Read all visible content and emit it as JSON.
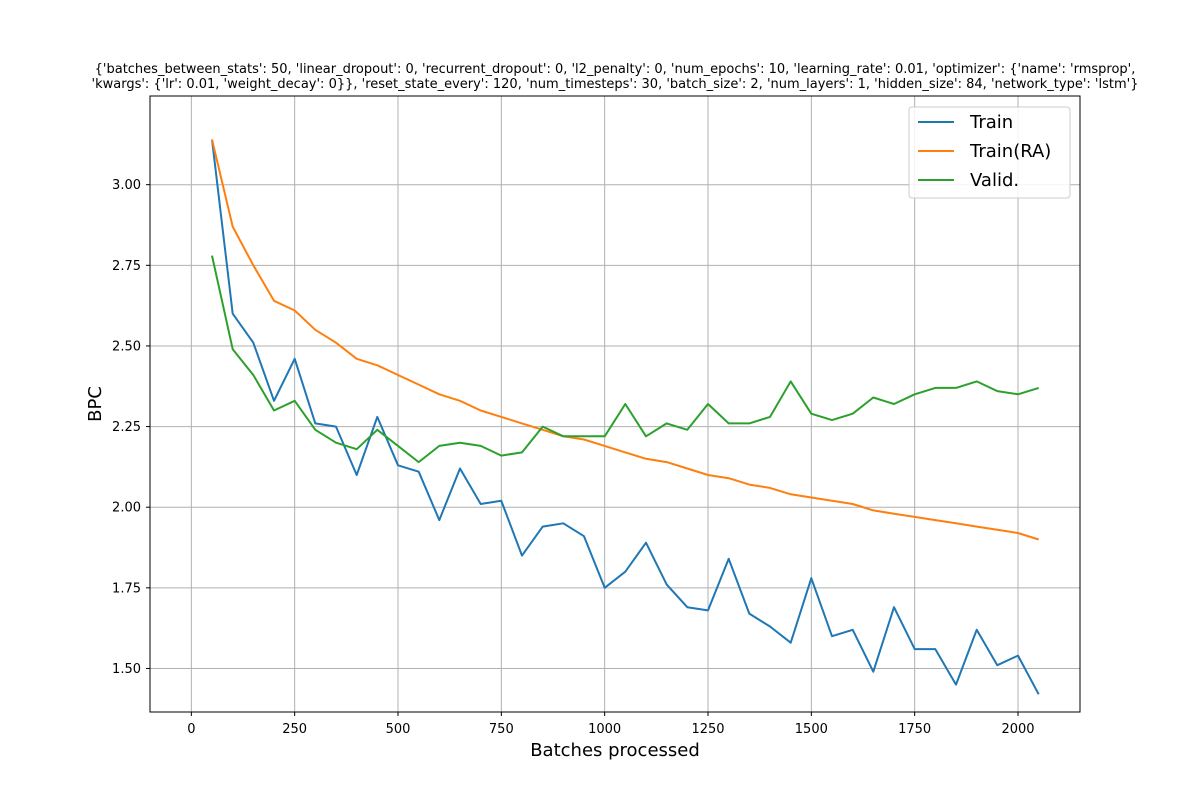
{
  "chart_data": {
    "type": "line",
    "title_lines": [
      "{'batches_between_stats': 50, 'linear_dropout': 0, 'recurrent_dropout': 0, 'l2_penalty': 0, 'num_epochs': 10, 'learning_rate': 0.01, 'optimizer': {'name': 'rmsprop',",
      "'kwargs': {'lr': 0.01, 'weight_decay': 0}}, 'reset_state_every': 120, 'num_timesteps': 30, 'batch_size': 2, 'num_layers': 1, 'hidden_size': 84, 'network_type': 'lstm'}"
    ],
    "xlabel": "Batches processed",
    "ylabel": "BPC",
    "xlim": [
      -100,
      2150
    ],
    "ylim": [
      1.365,
      3.275
    ],
    "xticks": [
      0,
      250,
      500,
      750,
      1000,
      1250,
      1500,
      1750,
      2000
    ],
    "xtick_labels": [
      "0",
      "250",
      "500",
      "750",
      "1000",
      "1250",
      "1500",
      "1750",
      "2000"
    ],
    "yticks": [
      1.5,
      1.75,
      2.0,
      2.25,
      2.5,
      2.75,
      3.0
    ],
    "ytick_labels": [
      "1.50",
      "1.75",
      "2.00",
      "2.25",
      "2.50",
      "2.75",
      "3.00"
    ],
    "grid": true,
    "legend_position": "top-right",
    "x": [
      50,
      100,
      150,
      200,
      250,
      300,
      350,
      400,
      450,
      500,
      550,
      600,
      650,
      700,
      750,
      800,
      850,
      900,
      950,
      1000,
      1050,
      1100,
      1150,
      1200,
      1250,
      1300,
      1350,
      1400,
      1450,
      1500,
      1550,
      1600,
      1650,
      1700,
      1750,
      1800,
      1850,
      1900,
      1950,
      2000,
      2050
    ],
    "series": [
      {
        "name": "Train",
        "color": "#1f77b4",
        "values": [
          3.14,
          2.6,
          2.51,
          2.33,
          2.46,
          2.26,
          2.25,
          2.1,
          2.28,
          2.13,
          2.11,
          1.96,
          2.12,
          2.01,
          2.02,
          1.85,
          1.94,
          1.95,
          1.91,
          1.75,
          1.8,
          1.89,
          1.76,
          1.69,
          1.68,
          1.84,
          1.67,
          1.63,
          1.58,
          1.78,
          1.6,
          1.62,
          1.49,
          1.69,
          1.56,
          1.56,
          1.45,
          1.62,
          1.51,
          1.54,
          1.42
        ]
      },
      {
        "name": "Train(RA)",
        "color": "#ff7f0e",
        "values": [
          3.14,
          2.87,
          2.75,
          2.64,
          2.61,
          2.55,
          2.51,
          2.46,
          2.44,
          2.41,
          2.38,
          2.35,
          2.33,
          2.3,
          2.28,
          2.26,
          2.24,
          2.22,
          2.21,
          2.19,
          2.17,
          2.15,
          2.14,
          2.12,
          2.1,
          2.09,
          2.07,
          2.06,
          2.04,
          2.03,
          2.02,
          2.01,
          1.99,
          1.98,
          1.97,
          1.96,
          1.95,
          1.94,
          1.93,
          1.92,
          1.9
        ]
      },
      {
        "name": "Valid.",
        "color": "#2ca02c",
        "values": [
          2.78,
          2.49,
          2.41,
          2.3,
          2.33,
          2.24,
          2.2,
          2.18,
          2.24,
          2.19,
          2.14,
          2.19,
          2.2,
          2.19,
          2.16,
          2.17,
          2.25,
          2.22,
          2.22,
          2.22,
          2.32,
          2.22,
          2.26,
          2.24,
          2.32,
          2.26,
          2.26,
          2.28,
          2.39,
          2.29,
          2.27,
          2.29,
          2.34,
          2.32,
          2.35,
          2.37,
          2.37,
          2.39,
          2.36,
          2.35,
          2.37
        ]
      }
    ]
  }
}
